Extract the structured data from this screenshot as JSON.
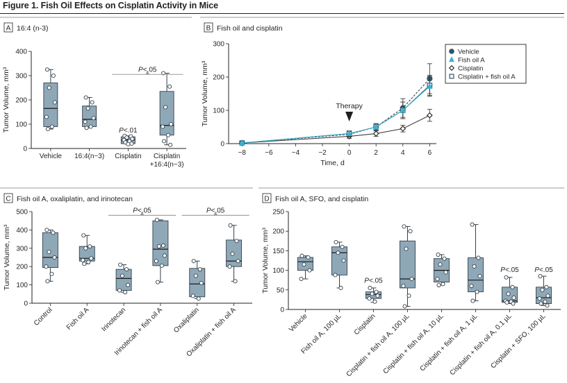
{
  "figure": {
    "title": "Figure 1. Fish Oil Effects on Cisplatin Activity in Mice"
  },
  "colors": {
    "box": "#8fa8b7",
    "boxStroke": "#34404a",
    "sigLine": "#9a9a9a",
    "vehicle": "#2e5667",
    "fishOil": "#39b1d3",
    "pointFill": "#ffffff"
  },
  "chart_data": [
    {
      "id": "A",
      "panel_label": "A",
      "panel_title": "16:4 (n-3)",
      "type": "box",
      "ylabel": "Tumor Volume, mm³",
      "ylim": [
        0,
        400
      ],
      "yticks": [
        0,
        100,
        200,
        300,
        400
      ],
      "categories": [
        "Vehicle",
        "16:4(n−3)",
        "Cisplatin",
        "Cisplatin\n+16:4(n−3)"
      ],
      "boxes": [
        {
          "min": 80,
          "q1": 90,
          "median": 165,
          "q3": 270,
          "max": 325,
          "points": [
            325,
            300,
            250,
            190,
            130,
            90,
            80
          ]
        },
        {
          "min": 85,
          "q1": 90,
          "median": 120,
          "q3": 175,
          "max": 210,
          "points": [
            210,
            190,
            165,
            125,
            110,
            90,
            85
          ]
        },
        {
          "min": 18,
          "q1": 20,
          "median": 35,
          "q3": 48,
          "max": 52,
          "points": [
            52,
            50,
            45,
            40,
            35,
            30,
            25,
            20,
            18
          ]
        },
        {
          "min": 15,
          "q1": 55,
          "median": 95,
          "q3": 235,
          "max": 310,
          "points": [
            310,
            255,
            170,
            100,
            90,
            55,
            30,
            15
          ]
        }
      ],
      "annotations": [
        {
          "text": "P<.05",
          "from": 2,
          "to": 3,
          "y": 305
        },
        {
          "text": "P<.01",
          "at": 2,
          "y": 60
        }
      ]
    },
    {
      "id": "B",
      "panel_label": "B",
      "panel_title": "Fish oil and cisplatin",
      "type": "line",
      "xlabel": "Time, d",
      "ylabel": "Tumor Volume, mm³",
      "xlim": [
        -9,
        6.5
      ],
      "ylim": [
        0,
        300
      ],
      "xticks": [
        -8,
        -6,
        -4,
        -2,
        0,
        2,
        4,
        6
      ],
      "yticks": [
        0,
        100,
        200,
        300
      ],
      "x": [
        -8,
        0,
        2,
        4,
        6
      ],
      "series": [
        {
          "name": "Vehicle",
          "marker": "circle",
          "values": [
            2,
            28,
            50,
            107,
            195
          ],
          "err": [
            4,
            8,
            10,
            28,
            45
          ]
        },
        {
          "name": "Fish oil A",
          "marker": "triangle",
          "values": [
            2,
            30,
            50,
            100,
            172
          ],
          "err": [
            4,
            8,
            10,
            25,
            30
          ]
        },
        {
          "name": "Cisplatin",
          "marker": "diamond",
          "values": [
            2,
            22,
            30,
            45,
            85
          ],
          "err": [
            4,
            6,
            8,
            10,
            18
          ]
        },
        {
          "name": "Cisplatin + fish oil A",
          "marker": "square",
          "values": [
            2,
            30,
            50,
            100,
            175
          ],
          "err": [
            4,
            8,
            10,
            25,
            30
          ]
        }
      ],
      "annotations": [
        {
          "text": "Therapy",
          "x": 0
        }
      ]
    },
    {
      "id": "C",
      "panel_label": "C",
      "panel_title": "Fish oil A, oxaliplatin, and irinotecan",
      "type": "box",
      "ylabel": "Tumor Volume, mm³",
      "ylim": [
        0,
        500
      ],
      "yticks": [
        0,
        100,
        200,
        300,
        400,
        500
      ],
      "categories": [
        "Control",
        "Fish oil A",
        "Irinotecan",
        "Irinotecan + fish oil A",
        "Oxaliplatin",
        "Oxaliplatin + fish oil A"
      ],
      "boxes": [
        {
          "min": 120,
          "q1": 195,
          "median": 250,
          "q3": 385,
          "max": 400,
          "points": [
            400,
            385,
            280,
            250,
            200,
            160,
            120
          ]
        },
        {
          "min": 215,
          "q1": 230,
          "median": 245,
          "q3": 310,
          "max": 370,
          "points": [
            370,
            310,
            300,
            245,
            235,
            225,
            215
          ]
        },
        {
          "min": 60,
          "q1": 70,
          "median": 135,
          "q3": 185,
          "max": 210,
          "points": [
            210,
            185,
            150,
            100,
            70,
            60
          ]
        },
        {
          "min": 115,
          "q1": 205,
          "median": 295,
          "q3": 450,
          "max": 455,
          "points": [
            455,
            315,
            310,
            260,
            230,
            205,
            115
          ]
        },
        {
          "min": 25,
          "q1": 35,
          "median": 105,
          "q3": 190,
          "max": 230,
          "points": [
            230,
            185,
            150,
            110,
            40,
            25
          ]
        },
        {
          "min": 120,
          "q1": 200,
          "median": 230,
          "q3": 345,
          "max": 425,
          "points": [
            425,
            340,
            270,
            230,
            200,
            120
          ]
        }
      ],
      "annotations": [
        {
          "text": "P<.05",
          "from": 2,
          "to": 3,
          "y": 480
        },
        {
          "text": "P<.05",
          "from": 4,
          "to": 5,
          "y": 480
        }
      ]
    },
    {
      "id": "D",
      "panel_label": "D",
      "panel_title": "Fish oil A, SFO, and cisplatin",
      "type": "box",
      "ylabel": "Tumor Volume, mm³",
      "ylim": [
        0,
        250
      ],
      "yticks": [
        0,
        50,
        100,
        150,
        200,
        250
      ],
      "categories": [
        "Vehicle",
        "Fish oil A, 100 µL",
        "Cisplatin",
        "Cisplatin + fish oil A, 100 µL",
        "Cisplatin + fish oil A, 10 µL",
        "Cisplatin + fish oil A, 1 µL",
        "Cisplatin + fish oil A, 0.1 µL",
        "Cisplatin + SFO, 100 µL"
      ],
      "boxes": [
        {
          "min": 78,
          "q1": 100,
          "median": 122,
          "q3": 133,
          "max": 137,
          "points": [
            137,
            133,
            115,
            100,
            78
          ]
        },
        {
          "min": 55,
          "q1": 88,
          "median": 145,
          "q3": 160,
          "max": 172,
          "points": [
            172,
            160,
            145,
            125,
            88,
            55
          ]
        },
        {
          "min": 18,
          "q1": 28,
          "median": 38,
          "q3": 45,
          "max": 55,
          "points": [
            55,
            45,
            40,
            35,
            28,
            20
          ]
        },
        {
          "min": 8,
          "q1": 55,
          "median": 78,
          "q3": 175,
          "max": 212,
          "points": [
            212,
            200,
            155,
            78,
            60,
            35,
            8
          ]
        },
        {
          "min": 62,
          "q1": 70,
          "median": 100,
          "q3": 130,
          "max": 140,
          "points": [
            140,
            130,
            115,
            95,
            78,
            65,
            62
          ]
        },
        {
          "min": 22,
          "q1": 45,
          "median": 75,
          "q3": 132,
          "max": 217,
          "points": [
            217,
            132,
            110,
            85,
            60,
            45,
            22
          ]
        },
        {
          "min": 15,
          "q1": 18,
          "median": 22,
          "q3": 57,
          "max": 82,
          "points": [
            82,
            57,
            40,
            30,
            22,
            20,
            18,
            15
          ]
        },
        {
          "min": 10,
          "q1": 15,
          "median": 30,
          "q3": 57,
          "max": 85,
          "points": [
            85,
            57,
            50,
            35,
            28,
            20,
            15,
            10
          ]
        }
      ],
      "annotations": [
        {
          "text": "P<.05",
          "at": 2,
          "y": 65
        },
        {
          "text": "P<.05",
          "at": 6,
          "y": 92
        },
        {
          "text": "P<.05",
          "at": 7,
          "y": 92
        }
      ]
    }
  ]
}
